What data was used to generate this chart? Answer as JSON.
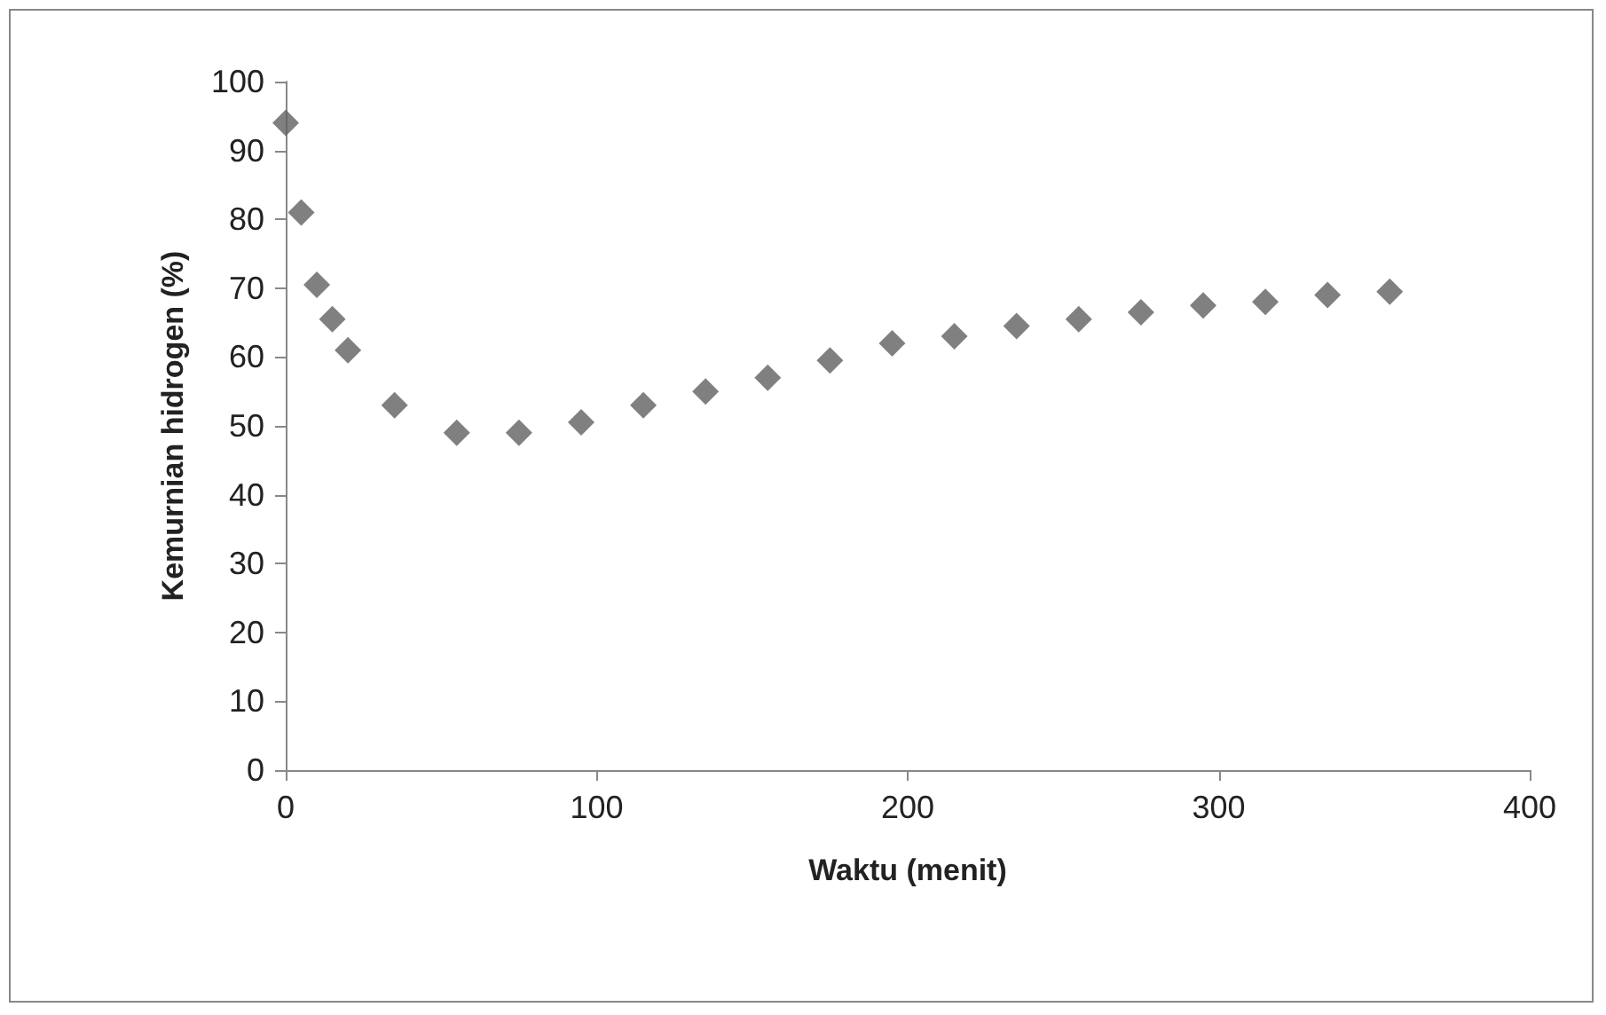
{
  "chart_data": {
    "type": "scatter",
    "xlabel": "Waktu (menit)",
    "ylabel": "Kemurnian hidrogen (%)",
    "x": [
      0,
      5,
      10,
      15,
      20,
      35,
      55,
      75,
      95,
      115,
      135,
      155,
      175,
      195,
      215,
      235,
      255,
      275,
      295,
      315,
      335,
      355
    ],
    "series": [
      {
        "color": "#606060",
        "values": [
          94,
          81,
          70.5,
          65.5,
          61,
          53,
          49,
          49,
          50.5,
          53,
          55,
          57,
          59.5,
          62,
          63,
          64.5,
          65.5,
          66.5,
          67.5,
          68,
          69,
          69.5
        ]
      }
    ],
    "xlim": [
      0,
      400
    ],
    "xticks": [
      0,
      100,
      200,
      300,
      400
    ],
    "ylim": [
      0,
      100
    ],
    "yticks": [
      0,
      10,
      20,
      30,
      40,
      50,
      60,
      70,
      80,
      90,
      100
    ],
    "marker": "diamond",
    "grid": false
  }
}
